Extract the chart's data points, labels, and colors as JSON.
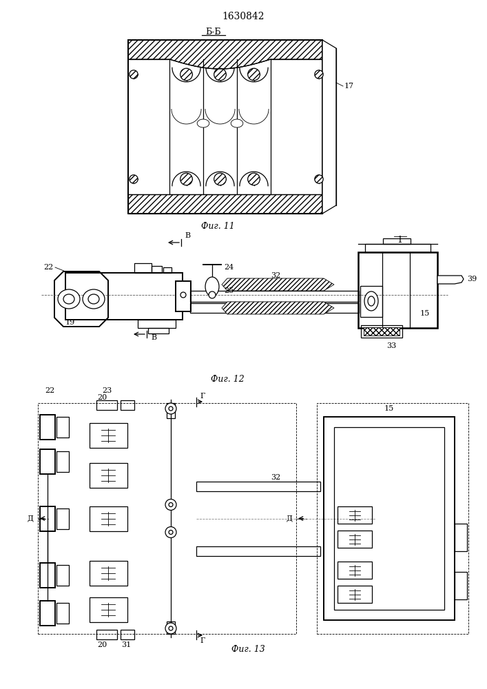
{
  "title": "1630842",
  "fig11_label": "Фиг. 11",
  "fig12_label": "Фиг. 12",
  "fig13_label": "Фиг. 13",
  "section_bb": "Б-Б",
  "bg_color": "#ffffff",
  "line_color": "#000000",
  "label_17": "17",
  "label_22": "22",
  "label_19": "19",
  "label_24": "24",
  "label_25": "25",
  "label_32": "32",
  "label_1": "1",
  "label_15": "15",
  "label_33": "33",
  "label_39": "39",
  "label_B": "В",
  "label_20": "20",
  "label_22b": "22",
  "label_23": "23",
  "label_31": "31",
  "label_G": "Г",
  "label_D": "Д",
  "label_32b": "32",
  "label_15b": "15"
}
